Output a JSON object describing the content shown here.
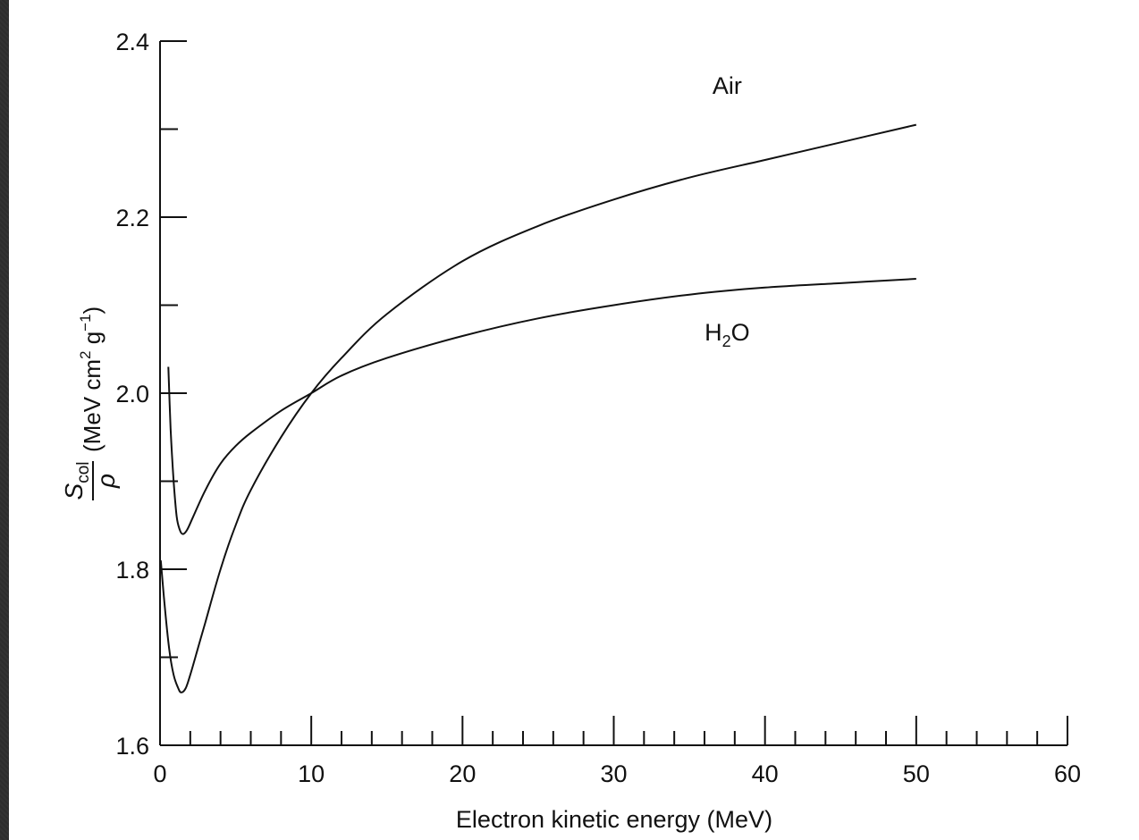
{
  "chart_data": {
    "type": "line",
    "xlabel": "Electron kinetic energy (MeV)",
    "ylabel": {
      "fraction_numerator": "S",
      "fraction_numerator_subscript": "col",
      "fraction_denominator": "ρ",
      "units_prefix": "(MeV cm",
      "units_exp1": "2",
      "units_mid": " g",
      "units_exp2": "−1",
      "units_suffix": ")"
    },
    "xlim": [
      0,
      60
    ],
    "ylim": [
      1.6,
      2.4
    ],
    "x_major_ticks": [
      0,
      10,
      20,
      30,
      40,
      50,
      60
    ],
    "x_tick_labels": [
      "0",
      "10",
      "20",
      "30",
      "40",
      "50",
      "60"
    ],
    "x_minor_step": 2,
    "y_major_ticks": [
      1.6,
      1.8,
      2.0,
      2.2,
      2.4
    ],
    "y_tick_labels": [
      "1.6",
      "1.8",
      "2.0",
      "2.2",
      "2.4"
    ],
    "y_minor_step": 0.1,
    "grid": false,
    "series": [
      {
        "name": "Air",
        "label_pos": {
          "x": 37.5,
          "y": 2.34
        },
        "points": [
          [
            0.05,
            1.81
          ],
          [
            0.3,
            1.76
          ],
          [
            0.6,
            1.71
          ],
          [
            0.9,
            1.68
          ],
          [
            1.2,
            1.665
          ],
          [
            1.4,
            1.66
          ],
          [
            1.7,
            1.665
          ],
          [
            2,
            1.68
          ],
          [
            2.5,
            1.71
          ],
          [
            3,
            1.74
          ],
          [
            4,
            1.8
          ],
          [
            5,
            1.85
          ],
          [
            6,
            1.89
          ],
          [
            8,
            1.95
          ],
          [
            10,
            2.0
          ],
          [
            12,
            2.04
          ],
          [
            15,
            2.09
          ],
          [
            20,
            2.15
          ],
          [
            25,
            2.19
          ],
          [
            30,
            2.22
          ],
          [
            35,
            2.245
          ],
          [
            40,
            2.265
          ],
          [
            45,
            2.285
          ],
          [
            50,
            2.305
          ]
        ]
      },
      {
        "name": "H",
        "name_subscript": "2",
        "name_suffix": "O",
        "label_pos": {
          "x": 37.5,
          "y": 2.06
        },
        "points": [
          [
            0.55,
            2.03
          ],
          [
            0.7,
            1.96
          ],
          [
            0.9,
            1.9
          ],
          [
            1.1,
            1.86
          ],
          [
            1.3,
            1.845
          ],
          [
            1.5,
            1.84
          ],
          [
            1.8,
            1.845
          ],
          [
            2.2,
            1.86
          ],
          [
            3,
            1.89
          ],
          [
            4,
            1.92
          ],
          [
            5,
            1.94
          ],
          [
            6,
            1.955
          ],
          [
            8,
            1.98
          ],
          [
            10,
            2.0
          ],
          [
            12,
            2.02
          ],
          [
            15,
            2.04
          ],
          [
            20,
            2.065
          ],
          [
            25,
            2.085
          ],
          [
            30,
            2.1
          ],
          [
            35,
            2.112
          ],
          [
            40,
            2.12
          ],
          [
            45,
            2.125
          ],
          [
            50,
            2.13
          ]
        ]
      }
    ]
  }
}
